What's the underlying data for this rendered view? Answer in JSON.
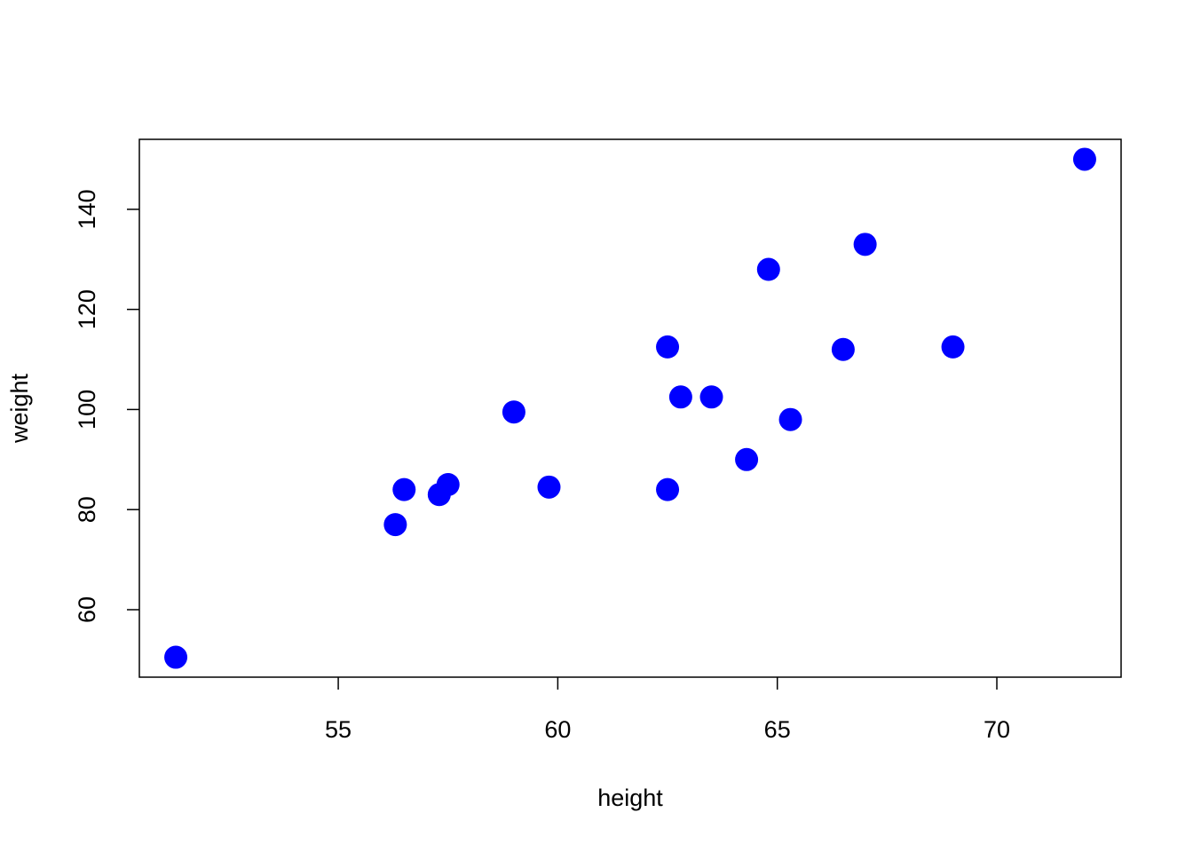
{
  "chart_data": {
    "type": "scatter",
    "x_label": "height",
    "y_label": "weight",
    "color": "#0000ff",
    "x": [
      51.3,
      56.3,
      56.5,
      57.3,
      57.5,
      59.0,
      59.8,
      62.5,
      62.5,
      62.8,
      63.5,
      64.3,
      64.8,
      65.3,
      66.5,
      67.0,
      69.0,
      72.0
    ],
    "values": [
      50.5,
      77,
      84,
      83,
      85,
      99.5,
      84.5,
      112.5,
      84,
      102.5,
      102.5,
      90,
      128,
      98,
      112,
      133,
      112.5,
      150
    ],
    "xlim": [
      50.47,
      72.83
    ],
    "ylim": [
      46.52,
      153.98
    ],
    "xticks": [
      55,
      60,
      65,
      70
    ],
    "yticks": [
      60,
      80,
      100,
      120,
      140
    ]
  }
}
